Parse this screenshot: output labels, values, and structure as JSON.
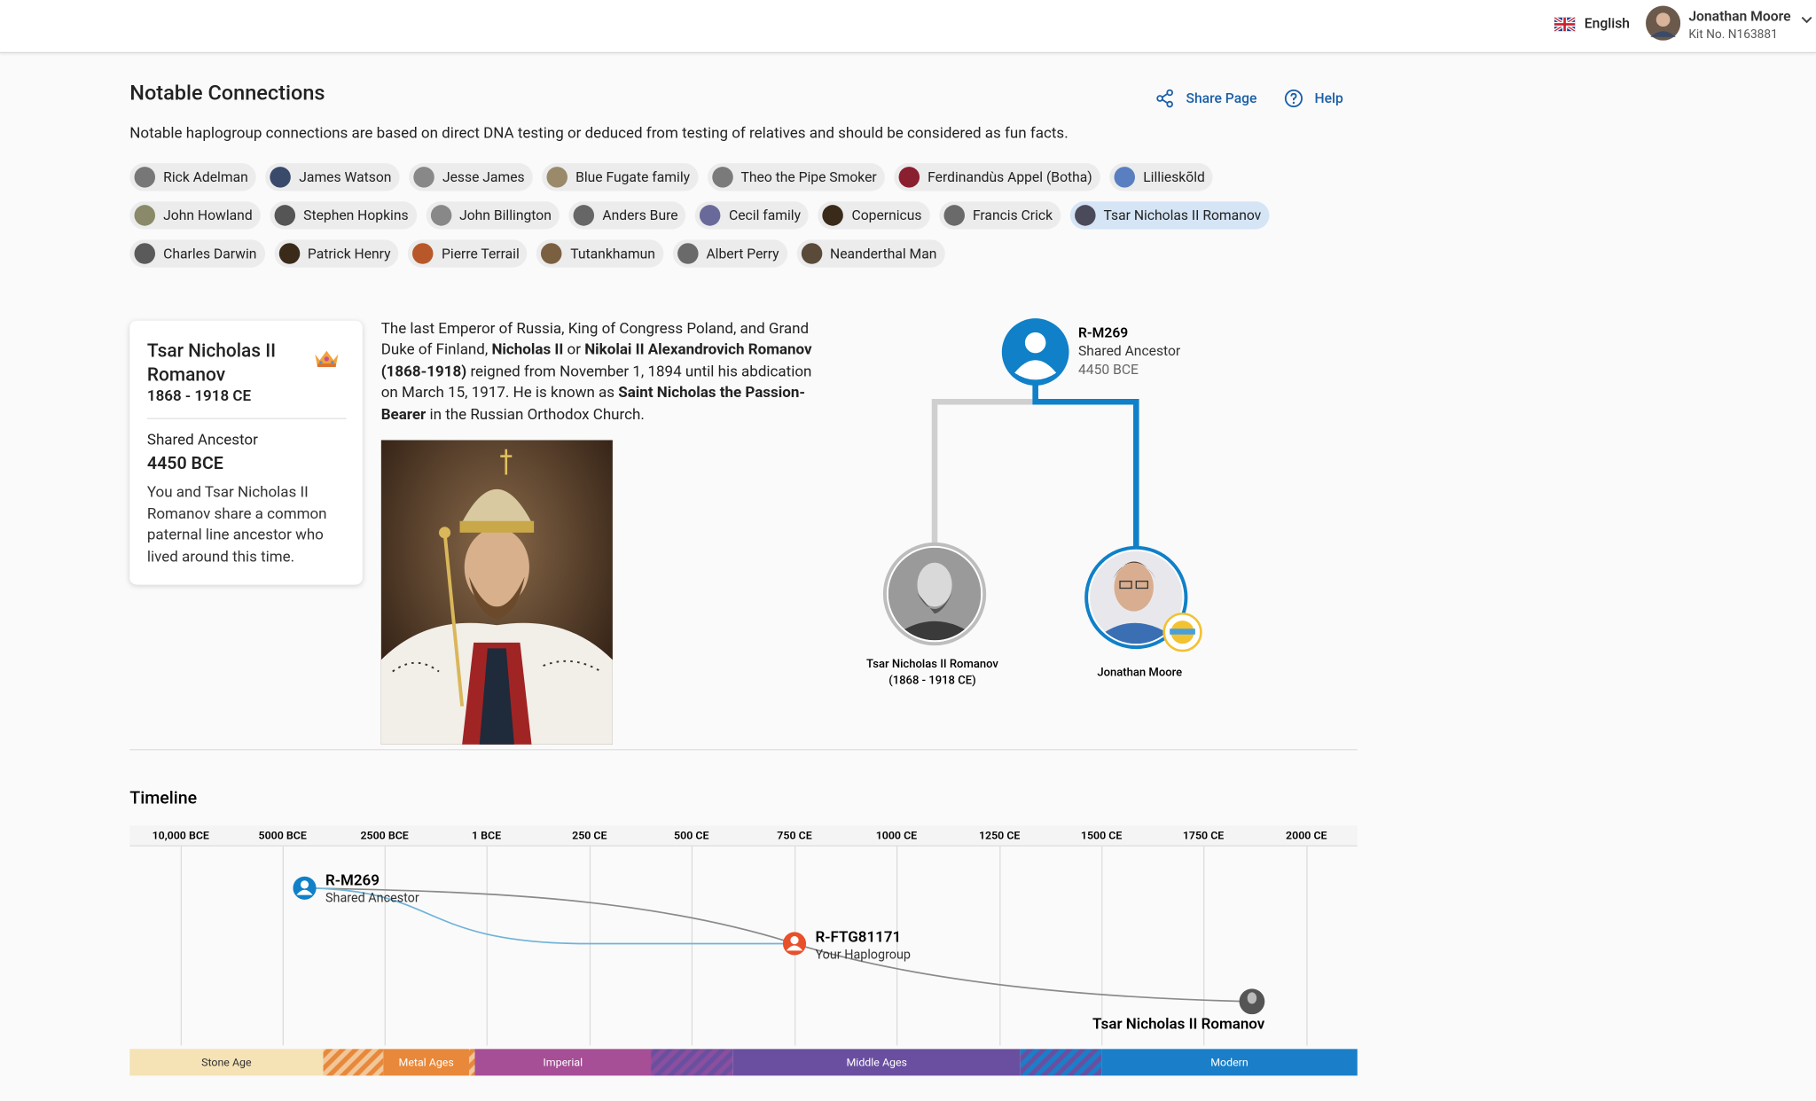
{
  "header": {
    "language": "English",
    "user_name": "Jonathan Moore",
    "kit": "Kit No. N163881"
  },
  "page": {
    "title": "Notable Connections",
    "share": "Share Page",
    "help": "Help",
    "description": "Notable haplogroup connections are based on direct DNA testing or deduced from testing of relatives and should be considered as fun facts."
  },
  "chips": {
    "items": [
      "Rick Adelman",
      "James Watson",
      "Jesse James",
      "Blue Fugate family",
      "Theo the Pipe Smoker",
      "Ferdinandùs Appel (Botha)",
      "Lillieskõld",
      "John Howland",
      "Stephen Hopkins",
      "John Billington",
      "Anders Bure",
      "Cecil family",
      "Copernicus",
      "Francis Crick",
      "Tsar Nicholas II Romanov",
      "Charles Darwin",
      "Patrick Henry",
      "Pierre Terrail",
      "Tutankhamun",
      "Albert Perry",
      "Neanderthal Man"
    ],
    "selected": 14
  },
  "card": {
    "name": "Tsar Nicholas II Romanov",
    "dates": "1868 - 1918 CE",
    "shared_label": "Shared Ancestor",
    "shared_value": "4450 BCE",
    "text": "You and Tsar Nicholas II Romanov share a common paternal line ancestor who lived around this time."
  },
  "bio": {
    "segments": [
      {
        "text": "The last Emperor of Russia, King of Congress Poland, and Grand Duke of Finland, ",
        "bold": false
      },
      {
        "text": "Nicholas II",
        "bold": true
      },
      {
        "text": " or ",
        "bold": false
      },
      {
        "text": "Nikolai II Alexandrovich Romanov (1868-1918)",
        "bold": true
      },
      {
        "text": " reigned from November 1, 1894 until his abdication on March 15, 1917. He is known as ",
        "bold": false
      },
      {
        "text": "Saint Nicholas the Passion-Bearer",
        "bold": true
      },
      {
        "text": " in the Russian Orthodox Church.",
        "bold": false
      }
    ]
  },
  "tree": {
    "root": {
      "haplogroup": "R-M269",
      "label": "Shared Ancestor",
      "date": "4450 BCE"
    },
    "left": {
      "name": "Tsar Nicholas II Romanov",
      "dates": "(1868 - 1918 CE)"
    },
    "right": {
      "name": "Jonathan Moore"
    }
  },
  "timeline": {
    "title": "Timeline",
    "axis": [
      "10,000 BCE",
      "5000 BCE",
      "2500 BCE",
      "1 BCE",
      "250 CE",
      "500 CE",
      "750 CE",
      "1000 CE",
      "1250 CE",
      "1500 CE",
      "1750 CE",
      "2000 CE"
    ],
    "markers": [
      {
        "name": "R-M269",
        "label": "Shared Ancestor"
      },
      {
        "name": "R-FTG81171",
        "label": "Your Haplogroup"
      },
      {
        "name": "Tsar Nicholas II Romanov"
      }
    ],
    "eras": [
      "Stone Age",
      "Metal Ages",
      "Imperial",
      "Middle Ages",
      "Modern"
    ]
  }
}
